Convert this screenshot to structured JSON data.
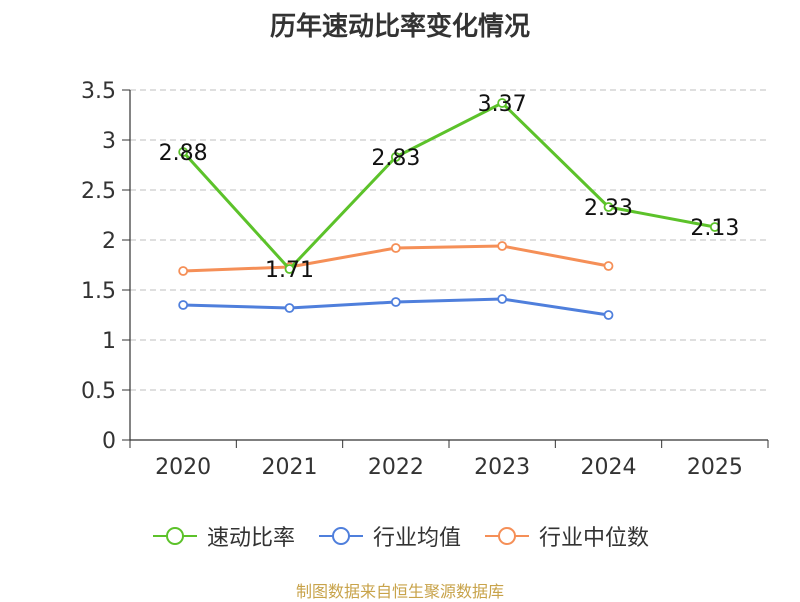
{
  "chart_data": {
    "type": "line",
    "title": "历年速动比率变化情况",
    "categories": [
      "2020",
      "2021",
      "2022",
      "2023",
      "2024",
      "2025"
    ],
    "ylim": [
      0,
      3.5
    ],
    "yticks": [
      "0",
      "0.5",
      "1",
      "1.5",
      "2",
      "2.5",
      "3",
      "3.5"
    ],
    "grid": true,
    "series": [
      {
        "name": "速动比率",
        "color": "#5cc22a",
        "values": [
          2.88,
          1.71,
          2.83,
          3.37,
          2.33,
          2.13
        ],
        "labels": [
          "2.88",
          "1.71",
          "2.83",
          "3.37",
          "2.33",
          "2.13"
        ]
      },
      {
        "name": "行业均值",
        "color": "#4f7fdc",
        "values": [
          1.35,
          1.32,
          1.38,
          1.41,
          1.25,
          null
        ]
      },
      {
        "name": "行业中位数",
        "color": "#f58f57",
        "values": [
          1.69,
          1.73,
          1.92,
          1.94,
          1.74,
          null
        ]
      }
    ],
    "legend_position": "bottom"
  },
  "footer": {
    "source": "制图数据来自恒生聚源数据库"
  }
}
